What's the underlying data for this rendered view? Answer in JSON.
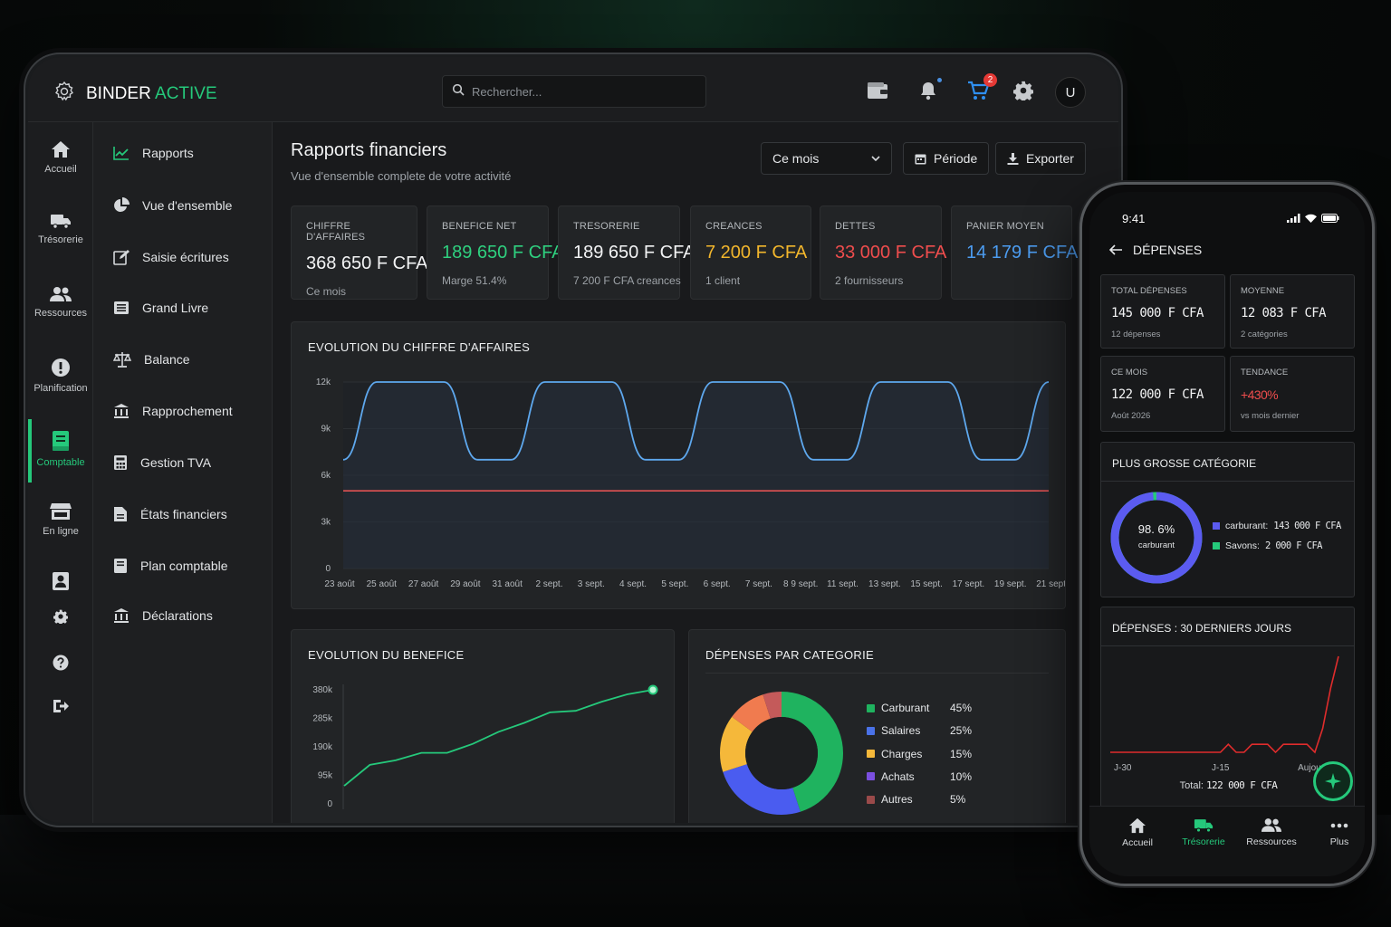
{
  "app": {
    "brand_part1": "BINDER",
    "brand_part2": "ACTIVE"
  },
  "topbar": {
    "search_placeholder": "Rechercher...",
    "cart_badge": "2",
    "user_initial": "U"
  },
  "rail": [
    "Accueil",
    "Trésorerie",
    "Ressources",
    "Planification",
    "Comptable",
    "En ligne"
  ],
  "menu": [
    "Rapports",
    "Vue d'ensemble",
    "Saisie écritures",
    "Grand Livre",
    "Balance",
    "Rapprochement",
    "Gestion TVA",
    "États financiers",
    "Plan comptable",
    "Déclarations"
  ],
  "page": {
    "title": "Rapports financiers",
    "subtitle": "Vue d'ensemble complete de votre activité",
    "period_select": "Ce mois",
    "period_button": "Période",
    "export_button": "Exporter"
  },
  "kpis": [
    {
      "label": "CHIFFRE D'AFFAIRES",
      "value": "368 650 F CFA",
      "sub": "Ce mois",
      "color": "#f2f3f4"
    },
    {
      "label": "BENEFICE NET",
      "value": "189 650 F CFA",
      "sub": "Marge 51.4%",
      "color": "#2fd07f"
    },
    {
      "label": "TRESORERIE",
      "value": "189 650 F CFA",
      "sub": "7 200 F CFA creances",
      "color": "#f2f3f4"
    },
    {
      "label": "CREANCES",
      "value": "7 200 F CFA",
      "sub": "1 client",
      "color": "#f2b62c"
    },
    {
      "label": "DETTES",
      "value": "33 000 F CFA",
      "sub": "2 fournisseurs",
      "color": "#ef4d4d"
    },
    {
      "label": "PANIER MOYEN",
      "value": "14 179 F CFA",
      "sub": "",
      "color": "#4c9cf0"
    }
  ],
  "revenue_chart_title": "EVOLUTION DU CHIFFRE D'AFFAIRES",
  "profit_chart_title": "EVOLUTION DU BENEFICE",
  "expenses_chart_title": "DÉPENSES PAR CATEGORIE",
  "chart_data": [
    {
      "type": "line",
      "title": "EVOLUTION DU CHIFFRE D'AFFAIRES",
      "ylim": [
        0,
        12000
      ],
      "yticks": [
        "12k",
        "9k",
        "6k",
        "3k",
        "0"
      ],
      "x_labels": [
        "23 août",
        "25 août",
        "27 août",
        "29 août",
        "31 août",
        "2 sept.",
        "3 sept.",
        "4 sept.",
        "5 sept.",
        "6 sept.",
        "7 sept.",
        "8 9 sept.",
        "11 sept.",
        "13 sept.",
        "15 sept.",
        "17 sept.",
        "19 sept.",
        "21 sept."
      ],
      "series": [
        {
          "color": "#5ea8ee",
          "values": [
            7000,
            12000,
            12000,
            12000,
            7000,
            7000,
            12000,
            12000,
            12000,
            7000,
            7000,
            12000,
            12000,
            12000,
            7000,
            7000,
            12000,
            12000,
            12000,
            7000,
            7000,
            12000
          ]
        },
        {
          "color": "#e05252",
          "values": [
            5000,
            5000
          ]
        }
      ]
    },
    {
      "type": "line",
      "title": "EVOLUTION DU BENEFICE",
      "ylim": [
        0,
        380000
      ],
      "yticks": [
        "380k",
        "285k",
        "190k",
        "95k",
        "0"
      ],
      "series": [
        {
          "color": "#25c97b",
          "values": [
            60000,
            130000,
            145000,
            170000,
            170000,
            200000,
            240000,
            270000,
            305000,
            310000,
            340000,
            365000,
            380000
          ]
        }
      ]
    },
    {
      "type": "pie",
      "title": "DÉPENSES PAR CATEGORIE",
      "slices": [
        {
          "name": "Carburant",
          "value": 45,
          "label": "45%",
          "color": "#1fb35f"
        },
        {
          "name": "Salaires",
          "value": 25,
          "label": "25%",
          "color": "#4a5cf0"
        },
        {
          "name": "Charges",
          "value": 15,
          "label": "15%",
          "color": "#f5b83a"
        },
        {
          "name": "Achats",
          "value": 10,
          "label": "10%",
          "color": "#f07b4f"
        },
        {
          "name": "Autres",
          "value": 5,
          "label": "5%",
          "color": "#c45a5a"
        }
      ],
      "legend": [
        {
          "name": "Carburant",
          "label": "45%",
          "color": "#1fb35f"
        },
        {
          "name": "Salaires",
          "label": "25%",
          "color": "#4a72e8"
        },
        {
          "name": "Charges",
          "label": "15%",
          "color": "#f5b83a"
        },
        {
          "name": "Achats",
          "label": "10%",
          "color": "#7b4fe0"
        },
        {
          "name": "Autres",
          "label": "5%",
          "color": "#9a4a4a"
        }
      ]
    },
    {
      "type": "line",
      "title": "DÉPENSES : 30 DERNIERS JOURS",
      "x_labels": [
        "J-30",
        "J-15",
        "Aujourd'hui"
      ],
      "series": [
        {
          "color": "#e02c2c",
          "values": [
            0,
            0,
            0,
            0,
            0,
            0,
            0,
            0,
            0,
            0,
            0,
            0,
            0,
            0,
            0,
            1,
            0,
            0,
            1,
            1,
            1,
            0,
            1,
            1,
            1,
            1,
            0,
            3,
            8,
            12
          ]
        }
      ]
    }
  ],
  "phone": {
    "time": "9:41",
    "title": "DÉPENSES",
    "cards": [
      {
        "label": "TOTAL DÉPENSES",
        "value": "145 000 F CFA",
        "sub": "12 dépenses",
        "color": "#f2f3f4"
      },
      {
        "label": "MOYENNE",
        "value": "12 083 F CFA",
        "sub": "2 catégories",
        "color": "#f2f3f4"
      },
      {
        "label": "CE MOIS",
        "value": "122 000 F CFA",
        "sub": "Août 2026",
        "color": "#f2f3f4"
      },
      {
        "label": "TENDANCE",
        "value": "+430%",
        "sub": "vs mois dernier",
        "color": "#ef4d4d"
      }
    ],
    "top_category_title": "PLUS GROSSE CATÉGORIE",
    "top_category_pct": "98. 6%",
    "top_category_name": "carburant",
    "top_category_fraction": 0.986,
    "top_legend": [
      {
        "label": "carburant:",
        "amount": "143 000 F CFA",
        "color": "#5b5bf0"
      },
      {
        "label": "Savons:",
        "amount": "2 000 F CFA",
        "color": "#25c97b"
      }
    ],
    "last30_title": "DÉPENSES : 30 DERNIERS JOURS",
    "total_label": "Total:",
    "total_value": "122 000 F CFA",
    "nav": [
      "Accueil",
      "Trésorerie",
      "Ressources",
      "Plus"
    ]
  }
}
